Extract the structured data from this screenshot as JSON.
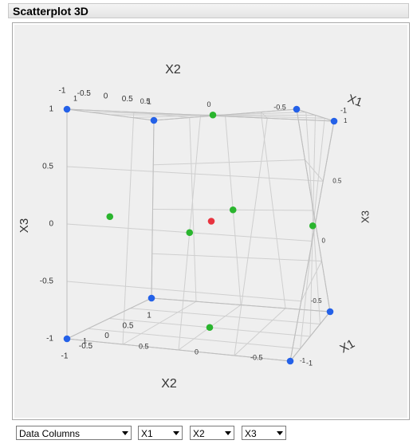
{
  "panel": {
    "title": "Scatterplot 3D"
  },
  "controls": {
    "data_columns": "Data Columns",
    "x_axis": "X1",
    "y_axis": "X2",
    "z_axis": "X3"
  },
  "colors": {
    "corner": "#2461e8",
    "face": "#2ab52e",
    "center": "#e8333f"
  },
  "chart_data": {
    "type": "scatter",
    "title": "Scatterplot 3D",
    "xlabel": "X1",
    "ylabel": "X2",
    "zlabel": "X3",
    "xlim": [
      -1,
      1
    ],
    "ylim": [
      -1,
      1
    ],
    "zlim": [
      -1,
      1
    ],
    "x_ticks": [
      "1",
      "0.5",
      "0",
      "-0.5",
      "-1"
    ],
    "y_ticks": [
      "1",
      "0.5",
      "0",
      "-0.5",
      "-1"
    ],
    "z_ticks": [
      "1",
      "0.5",
      "0",
      "-0.5",
      "-1"
    ],
    "grid": true,
    "points": [
      {
        "x": -1,
        "y": -1,
        "z": -1,
        "group": "corner"
      },
      {
        "x": 1,
        "y": -1,
        "z": -1,
        "group": "corner"
      },
      {
        "x": -1,
        "y": 1,
        "z": -1,
        "group": "corner"
      },
      {
        "x": 1,
        "y": 1,
        "z": -1,
        "group": "corner"
      },
      {
        "x": -1,
        "y": -1,
        "z": 1,
        "group": "corner"
      },
      {
        "x": 1,
        "y": -1,
        "z": 1,
        "group": "corner"
      },
      {
        "x": -1,
        "y": 1,
        "z": 1,
        "group": "corner"
      },
      {
        "x": 1,
        "y": 1,
        "z": 1,
        "group": "corner"
      },
      {
        "x": -1,
        "y": 0,
        "z": 0,
        "group": "face"
      },
      {
        "x": 1,
        "y": 0,
        "z": 0,
        "group": "face"
      },
      {
        "x": 0,
        "y": -1,
        "z": 0,
        "group": "face"
      },
      {
        "x": 0,
        "y": 1,
        "z": 0,
        "group": "face"
      },
      {
        "x": 0,
        "y": 0,
        "z": -1,
        "group": "face"
      },
      {
        "x": 0,
        "y": 0,
        "z": 1,
        "group": "face"
      },
      {
        "x": 0,
        "y": 0,
        "z": 0,
        "group": "center"
      }
    ]
  }
}
